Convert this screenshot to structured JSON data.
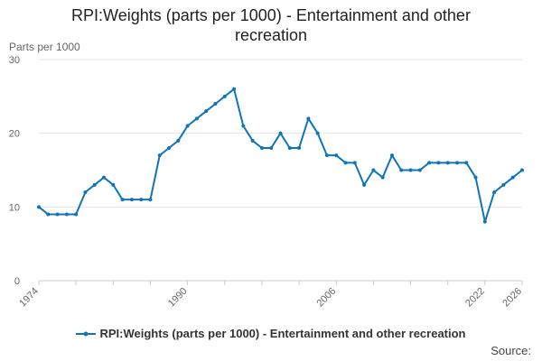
{
  "page": {
    "title_line1": "RPI:Weights (parts per 1000) - Entertainment and other",
    "title_line2": "recreation",
    "source_label": "Source:"
  },
  "colors": {
    "series": "#0f75b8",
    "grid": "#e6e6e6",
    "axis": "#cccccc",
    "tick_text": "#666666"
  },
  "chart_data": {
    "type": "line",
    "title": "RPI:Weights (parts per 1000) - Entertainment and other recreation",
    "ylabel": "Parts per 1000",
    "xlabel": "",
    "ylim": [
      0,
      30
    ],
    "yticks": [
      0,
      10,
      20,
      30
    ],
    "xlim": [
      1974,
      2026
    ],
    "xticks": [
      1974,
      1990,
      2006,
      2022,
      2026
    ],
    "grid": true,
    "legend_position": "bottom",
    "series": [
      {
        "name": "RPI:Weights (parts per 1000) - Entertainment and other recreation",
        "x": [
          1974,
          1975,
          1976,
          1977,
          1978,
          1979,
          1980,
          1981,
          1982,
          1983,
          1984,
          1985,
          1986,
          1987,
          1988,
          1989,
          1990,
          1991,
          1992,
          1993,
          1994,
          1995,
          1996,
          1997,
          1998,
          1999,
          2000,
          2001,
          2002,
          2003,
          2004,
          2005,
          2006,
          2007,
          2008,
          2009,
          2010,
          2011,
          2012,
          2013,
          2014,
          2015,
          2016,
          2017,
          2018,
          2019,
          2020,
          2021,
          2022,
          2023,
          2024,
          2025,
          2026
        ],
        "values": [
          10,
          9,
          9,
          9,
          9,
          12,
          13,
          14,
          13,
          11,
          11,
          11,
          11,
          17,
          18,
          19,
          21,
          22,
          23,
          24,
          25,
          26,
          21,
          19,
          18,
          18,
          20,
          18,
          18,
          22,
          20,
          17,
          17,
          16,
          16,
          13,
          15,
          14,
          17,
          15,
          15,
          15,
          16,
          16,
          16,
          16,
          16,
          14,
          8,
          12,
          13,
          14,
          15
        ]
      }
    ]
  }
}
